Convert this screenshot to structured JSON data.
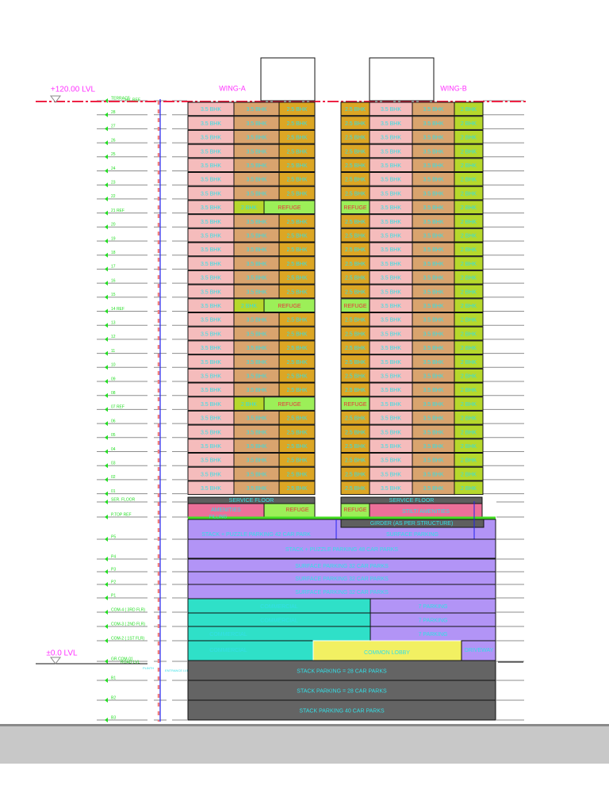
{
  "levels": {
    "top": "+120.00 LVL",
    "ground": "±0.0 LVL",
    "road": "ROAD LVL",
    "ht_ref": "HT. REF"
  },
  "wings": {
    "a": "WING-A",
    "b": "WING-B"
  },
  "floor_labels": [
    "TERRACE",
    "28",
    "27",
    "26",
    "25",
    "24",
    "23",
    "22",
    "21 REF",
    "20",
    "19",
    "18",
    "17",
    "16",
    "15",
    "14 REF",
    "13",
    "12",
    "11",
    "10",
    "09",
    "08",
    "07 REF",
    "06",
    "05",
    "04",
    "03",
    "02",
    "01"
  ],
  "lower_labels": [
    "SER. FLOOR",
    "P.TOP REF",
    "P5",
    "P4",
    "P3",
    "P2",
    "P1",
    "COM-4 ( 3RD FLR)",
    "COM-3 ( 2ND FLR)",
    "COM-2 ( 1ST FLR)",
    "GR.COM-01",
    "B1",
    "B2",
    "B3"
  ],
  "refuge_rows": [
    8,
    15,
    22
  ],
  "wing_a": {
    "typical": [
      "3.5 BHK",
      "3.5 BHK",
      "2.5 BHK"
    ],
    "refuge": [
      "3.5 BHK",
      "2 BHK",
      "REFUGE"
    ]
  },
  "wing_b": {
    "typical": [
      "2.5 BHK",
      "3.5 BHK",
      "3.5 BHK",
      "2 BHK"
    ],
    "refuge": [
      "REFUGE",
      "3.5 BHK",
      "3.5 BHK",
      "2 BHK"
    ]
  },
  "podium": {
    "service_floor": "SERVICE FLOOR",
    "amenities": "AMENITIES",
    "refuge": "REFUGE",
    "stilt_amenities": "STILT/ AMENITIES",
    "filling": "FILLING",
    "girder": "GIRDER (AS PER STRUCTURE)",
    "p5_left": "STACK  + PUZZLE PARKING 42 CAR PARK",
    "p5_right": "SURFACE PARKING",
    "p4": "STACK  + PUZZLE PARKING  48 CAR PARKS",
    "p3": "SURFACE PARKING  32 CAR PARKS",
    "p2": "SURFACE PARKING  32 CAR PARKS",
    "p1": "SURFACE PARKING  32 CAR PARKS",
    "commercial": "COMMERCIAL",
    "parking_7": "7 PARKING",
    "common_lobby": "COMMON LOBBY",
    "driveway": "DRIVEWAY",
    "b1": "STACK PARKING = 28 CAR PARKS",
    "b2": "STACK PARKING = 28 CAR PARKS",
    "b3": "STACK PARKING  40 CAR PARKS"
  },
  "annotations": {
    "compound_wall": "COMPOUND WALL",
    "plinth": "PLINTH",
    "entrance_lvl": "ENTRANCE LVL"
  },
  "colors": {
    "bhk35_a": "#f5bcbc",
    "bhk35_b": "#d9a46e",
    "bhk25": "#dca624",
    "bhk2": "#b6d82c",
    "refuge": "#9cef58",
    "amenities": "#ec7099",
    "service": "#5f5f5f",
    "parking": "#b294f6",
    "commercial": "#2fe0c8",
    "lobby": "#f2f062",
    "basement": "#646464",
    "unit_text": "#33dfe6",
    "refuge_text": "#e8323c",
    "level_text": "#ff33ff",
    "floor_label": "#22dd22",
    "datum": "#ee2244"
  }
}
